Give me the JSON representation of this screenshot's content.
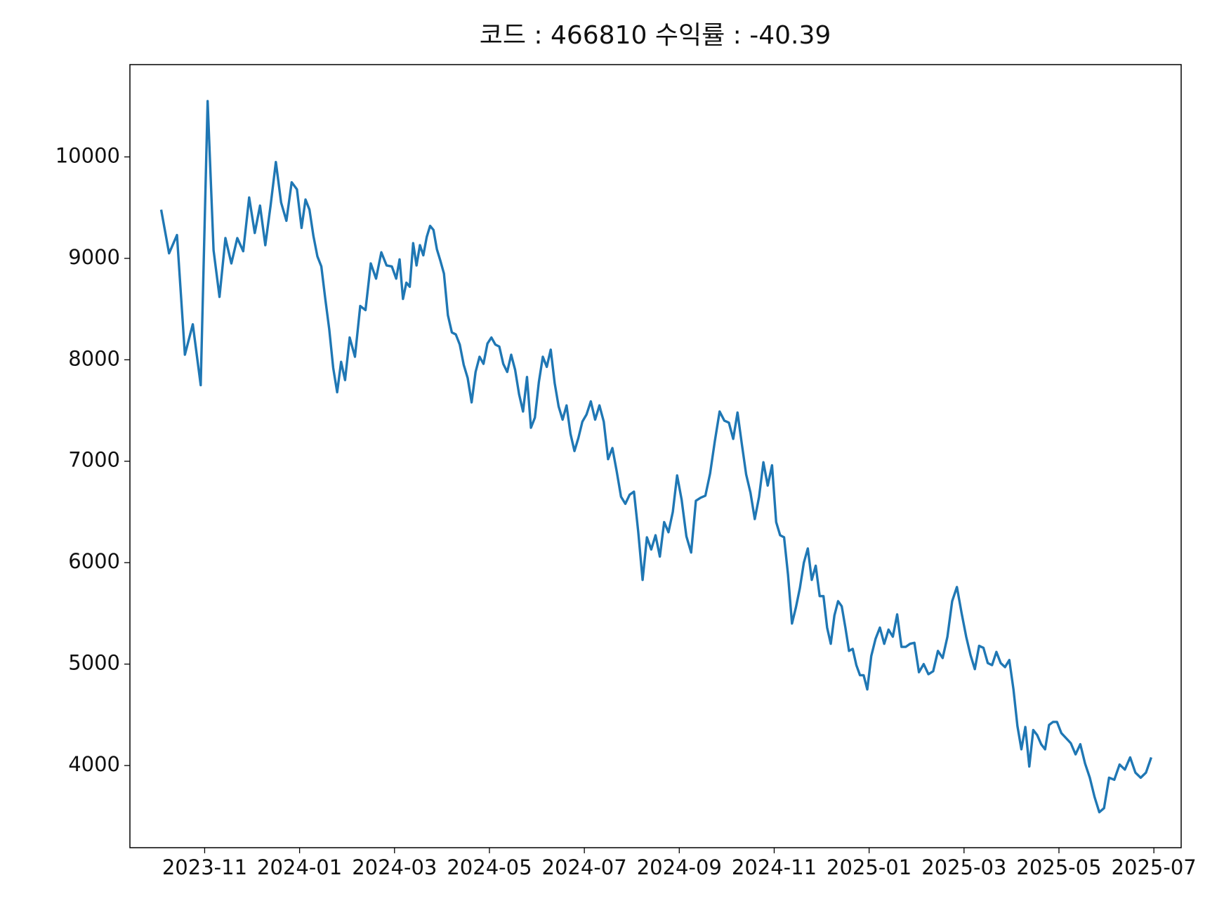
{
  "chart_data": {
    "type": "line",
    "title": "코드 : 466810 수익률 : -40.39",
    "color": "#1f77b4",
    "x": [
      "2023-10",
      "2023-10",
      "2023-10",
      "2023-10",
      "2023-10",
      "2023-10",
      "2023-11",
      "2023-11",
      "2023-11",
      "2023-11",
      "2023-11",
      "2023-11",
      "2023-11",
      "2023-11",
      "2023-12",
      "2023-12",
      "2023-12",
      "2023-12",
      "2023-12",
      "2023-12",
      "2023-12",
      "2023-12",
      "2023-12",
      "2024-01",
      "2024-01",
      "2024-01",
      "2024-01",
      "2024-01",
      "2024-01",
      "2024-01",
      "2024-01",
      "2024-01",
      "2024-01",
      "2024-01",
      "2024-01",
      "2024-02",
      "2024-02",
      "2024-02",
      "2024-02",
      "2024-02",
      "2024-02",
      "2024-02",
      "2024-02",
      "2024-02",
      "2024-03",
      "2024-03",
      "2024-03",
      "2024-03",
      "2024-03",
      "2024-03",
      "2024-03",
      "2024-03",
      "2024-03",
      "2024-03",
      "2024-03",
      "2024-03",
      "2024-03",
      "2024-03",
      "2024-04",
      "2024-04",
      "2024-04",
      "2024-04",
      "2024-04",
      "2024-04",
      "2024-04",
      "2024-04",
      "2024-04",
      "2024-04",
      "2024-04",
      "2024-04",
      "2024-05",
      "2024-05",
      "2024-05",
      "2024-05",
      "2024-05",
      "2024-05",
      "2024-05",
      "2024-05",
      "2024-05",
      "2024-05",
      "2024-05",
      "2024-05",
      "2024-06",
      "2024-06",
      "2024-06",
      "2024-06",
      "2024-06",
      "2024-06",
      "2024-06",
      "2024-06",
      "2024-06",
      "2024-06",
      "2024-06",
      "2024-06",
      "2024-07",
      "2024-07",
      "2024-07",
      "2024-07",
      "2024-07",
      "2024-07",
      "2024-07",
      "2024-07",
      "2024-07",
      "2024-07",
      "2024-07",
      "2024-08",
      "2024-08",
      "2024-08",
      "2024-08",
      "2024-08",
      "2024-08",
      "2024-08",
      "2024-08",
      "2024-08",
      "2024-08",
      "2024-08",
      "2024-09",
      "2024-09",
      "2024-09",
      "2024-09",
      "2024-09",
      "2024-09",
      "2024-09",
      "2024-09",
      "2024-09",
      "2024-09",
      "2024-10",
      "2024-10",
      "2024-10",
      "2024-10",
      "2024-10",
      "2024-10",
      "2024-10",
      "2024-10",
      "2024-10",
      "2024-10",
      "2024-10",
      "2024-11",
      "2024-11",
      "2024-11",
      "2024-11",
      "2024-11",
      "2024-11",
      "2024-11",
      "2024-11",
      "2024-11",
      "2024-11",
      "2024-11",
      "2024-11",
      "2024-12",
      "2024-12",
      "2024-12",
      "2024-12",
      "2024-12",
      "2024-12",
      "2024-12",
      "2024-12",
      "2024-12",
      "2024-12",
      "2024-12",
      "2024-12",
      "2024-12",
      "2025-01",
      "2025-01",
      "2025-01",
      "2025-01",
      "2025-01",
      "2025-01",
      "2025-01",
      "2025-01",
      "2025-01",
      "2025-01",
      "2025-01",
      "2025-02",
      "2025-02",
      "2025-02",
      "2025-02",
      "2025-02",
      "2025-02",
      "2025-02",
      "2025-02",
      "2025-02",
      "2025-02",
      "2025-03",
      "2025-03",
      "2025-03",
      "2025-03",
      "2025-03",
      "2025-03",
      "2025-03",
      "2025-03",
      "2025-03",
      "2025-03",
      "2025-03",
      "2025-04",
      "2025-04",
      "2025-04",
      "2025-04",
      "2025-04",
      "2025-04",
      "2025-04",
      "2025-04",
      "2025-04",
      "2025-04",
      "2025-04",
      "2025-04",
      "2025-05",
      "2025-05",
      "2025-05",
      "2025-05",
      "2025-05",
      "2025-05",
      "2025-05",
      "2025-05",
      "2025-05",
      "2025-05",
      "2025-06",
      "2025-06",
      "2025-06",
      "2025-06",
      "2025-06",
      "2025-06",
      "2025-06",
      "2025-06",
      "2025-06"
    ],
    "values": [
      9480,
      9050,
      9230,
      8050,
      8350,
      7750,
      10550,
      9080,
      8620,
      9200,
      8950,
      9200,
      9070,
      9600,
      9250,
      9520,
      9130,
      9520,
      9950,
      9550,
      9370,
      9750,
      9680,
      9300,
      9580,
      9480,
      9220,
      9020,
      8920,
      8600,
      8300,
      7920,
      7680,
      7980,
      7800,
      8220,
      8030,
      8530,
      8490,
      8950,
      8800,
      9060,
      8930,
      8920,
      8800,
      8990,
      8600,
      8760,
      8720,
      9150,
      8930,
      9130,
      9030,
      9210,
      9320,
      9280,
      9090,
      8980,
      8850,
      8440,
      8270,
      8250,
      8150,
      7950,
      7820,
      7580,
      7880,
      8030,
      7960,
      8160,
      8220,
      8150,
      8130,
      7960,
      7880,
      8050,
      7900,
      7660,
      7490,
      7830,
      7330,
      7430,
      7780,
      8030,
      7930,
      8100,
      7770,
      7540,
      7410,
      7550,
      7270,
      7100,
      7230,
      7390,
      7460,
      7590,
      7410,
      7550,
      7390,
      7020,
      7130,
      6900,
      6650,
      6580,
      6670,
      6700,
      6300,
      5830,
      6250,
      6130,
      6270,
      6060,
      6400,
      6300,
      6500,
      6860,
      6620,
      6260,
      6100,
      6610,
      6640,
      6660,
      6880,
      7200,
      7490,
      7400,
      7380,
      7220,
      7480,
      7170,
      6870,
      6690,
      6430,
      6650,
      6990,
      6760,
      6960,
      6400,
      6270,
      6250,
      5880,
      5400,
      5560,
      5750,
      6000,
      6140,
      5830,
      5970,
      5670,
      5670,
      5360,
      5200,
      5480,
      5620,
      5570,
      5360,
      5130,
      5150,
      4990,
      4890,
      4890,
      4750,
      5080,
      5250,
      5360,
      5200,
      5340,
      5270,
      5490,
      5170,
      5170,
      5200,
      5210,
      4920,
      5000,
      4900,
      4930,
      5130,
      5060,
      5270,
      5620,
      5760,
      5500,
      5270,
      5090,
      4950,
      5180,
      5160,
      5010,
      4990,
      5120,
      5010,
      4970,
      5040,
      4750,
      4390,
      4160,
      4380,
      3990,
      4350,
      4300,
      4210,
      4160,
      4400,
      4430,
      4430,
      4320,
      4270,
      4220,
      4110,
      4210,
      4020,
      3880,
      3690,
      3540,
      3580,
      3880,
      3860,
      4010,
      3960,
      4080,
      3930,
      3880,
      3930,
      4080
    ],
    "xticks": [
      "2023-11",
      "2024-01",
      "2024-03",
      "2024-05",
      "2024-07",
      "2024-09",
      "2024-11",
      "2025-01",
      "2025-03",
      "2025-05",
      "2025-07"
    ],
    "ylim": [
      3190,
      10910
    ],
    "yticks": [
      4000,
      5000,
      6000,
      7000,
      8000,
      9000,
      10000
    ]
  }
}
